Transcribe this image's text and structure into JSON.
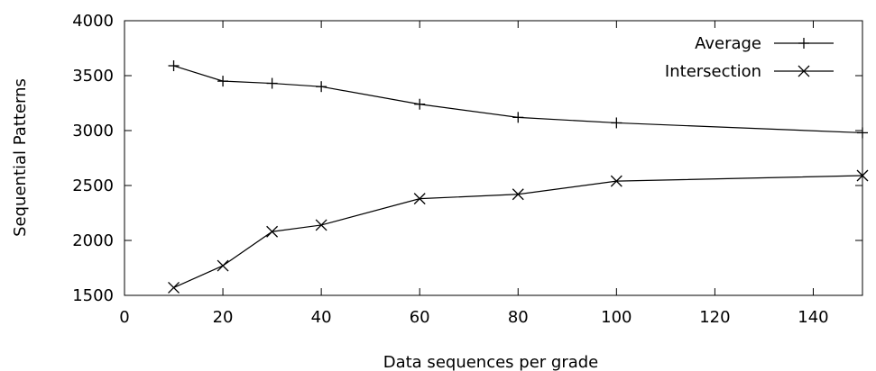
{
  "chart_data": {
    "type": "line",
    "title": "",
    "xlabel": "Data sequences per grade",
    "ylabel": "Sequential Patterns",
    "xlim": [
      0,
      150
    ],
    "ylim": [
      1500,
      4000
    ],
    "xticks": [
      0,
      20,
      40,
      60,
      80,
      100,
      120,
      140
    ],
    "yticks": [
      1500,
      2000,
      2500,
      3000,
      3500,
      4000
    ],
    "grid": false,
    "legend_position": "top-right",
    "series": [
      {
        "name": "Average",
        "marker": "plus",
        "color": "#000000",
        "x": [
          10,
          20,
          30,
          40,
          60,
          80,
          100,
          150
        ],
        "y": [
          3590,
          3450,
          3430,
          3400,
          3240,
          3120,
          3070,
          2980
        ]
      },
      {
        "name": "Intersection",
        "marker": "cross",
        "color": "#000000",
        "x": [
          10,
          20,
          30,
          40,
          60,
          80,
          100,
          150
        ],
        "y": [
          1570,
          1770,
          2080,
          2140,
          2380,
          2420,
          2540,
          2590
        ]
      }
    ]
  }
}
